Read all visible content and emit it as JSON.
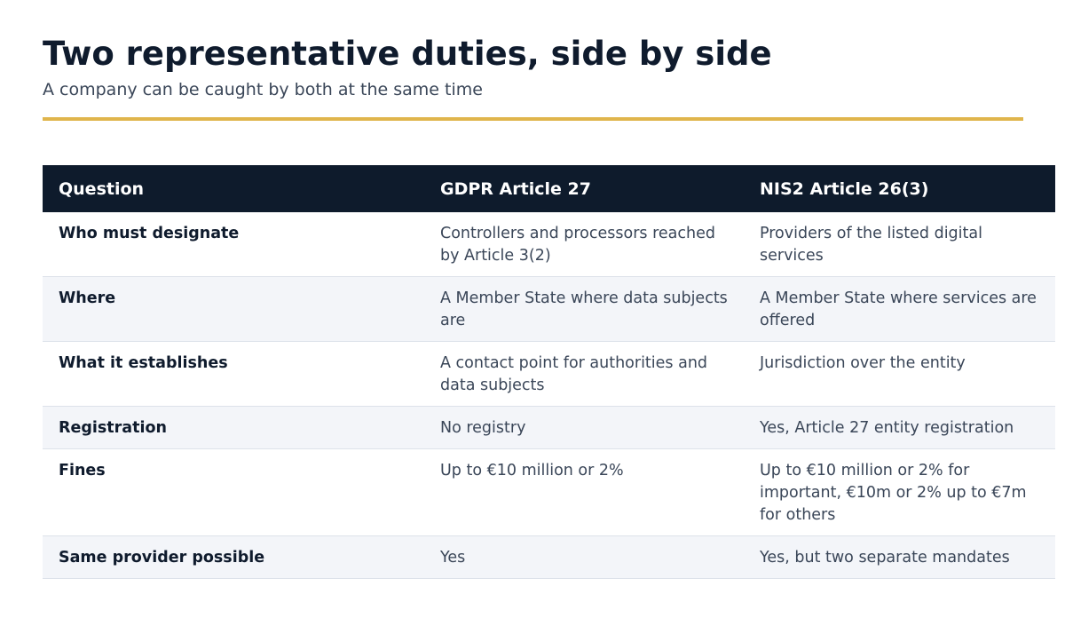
{
  "title": "Two representative duties, side by side",
  "subtitle": "A company can be caught by both at the same time",
  "colors": {
    "accent": "#e0b54c",
    "header_bg": "#0e1b2c",
    "alt_row_bg": "#f3f5f9"
  },
  "table": {
    "headers": [
      "Question",
      "GDPR Article 27",
      "NIS2 Article 26(3)"
    ],
    "rows": [
      [
        "Who must designate",
        "Controllers and processors reached by Article 3(2)",
        "Providers of the listed digital services"
      ],
      [
        "Where",
        "A Member State where data subjects are",
        "A Member State where services are offered"
      ],
      [
        "What it establishes",
        "A contact point for authorities and data subjects",
        "Jurisdiction over the entity"
      ],
      [
        "Registration",
        "No registry",
        "Yes, Article 27 entity registration"
      ],
      [
        "Fines",
        "Up to €10 million or 2%",
        "Up to €10 million or 2% for important, €10m or 2% up to €7m for others"
      ],
      [
        "Same provider possible",
        "Yes",
        "Yes, but two separate mandates"
      ]
    ]
  }
}
